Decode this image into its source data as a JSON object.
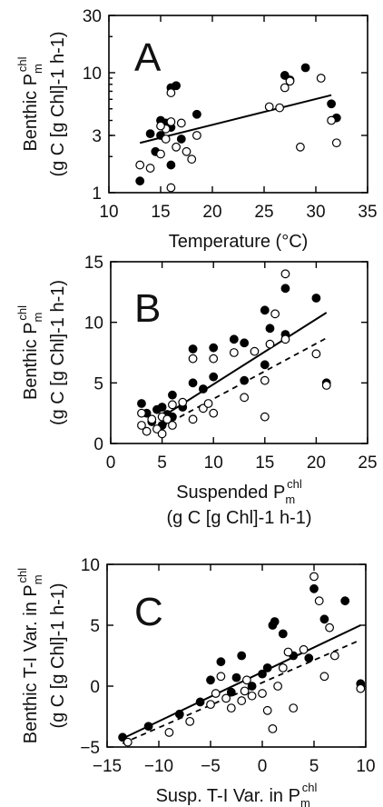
{
  "chart_data": [
    {
      "type": "scatter",
      "panel_letter": "A",
      "ylabel_line1": "Benthic P",
      "ylabel_sub": "m",
      "ylabel_sup": "chl",
      "ylabel_line2": "(g C [g Chl]-1 h-1)",
      "xlabel": "Temperature (°C)",
      "xlim": [
        10,
        35
      ],
      "ylim": [
        1,
        30
      ],
      "yscale": "log",
      "xticks": [
        10,
        15,
        20,
        25,
        30,
        35
      ],
      "yticks": [
        1,
        3,
        10,
        30
      ],
      "series": [
        {
          "marker": "filled",
          "points": [
            [
              13,
              1.25
            ],
            [
              14,
              3.1
            ],
            [
              14.5,
              2.2
            ],
            [
              15,
              4
            ],
            [
              15.5,
              3.8
            ],
            [
              16,
              7.5
            ],
            [
              16,
              1.7
            ],
            [
              16.5,
              7.8
            ],
            [
              17,
              2.8
            ],
            [
              18.5,
              4.5
            ],
            [
              27,
              9.5
            ],
            [
              27.5,
              8.7
            ],
            [
              29,
              11
            ],
            [
              31.5,
              5.5
            ],
            [
              32,
              4.2
            ],
            [
              15,
              3.0
            ],
            [
              16,
              3.5
            ]
          ]
        },
        {
          "marker": "open",
          "points": [
            [
              13,
              1.7
            ],
            [
              14,
              1.6
            ],
            [
              15,
              2.1
            ],
            [
              15.5,
              2.8
            ],
            [
              15.5,
              3.4
            ],
            [
              16,
              1.1
            ],
            [
              16,
              6.8
            ],
            [
              16.5,
              2.4
            ],
            [
              17,
              3.8
            ],
            [
              17.5,
              2.2
            ],
            [
              18,
              1.9
            ],
            [
              18.5,
              3.0
            ],
            [
              25.5,
              5.2
            ],
            [
              26.5,
              5.1
            ],
            [
              27,
              7.5
            ],
            [
              27.5,
              8.5
            ],
            [
              28.5,
              2.4
            ],
            [
              30.5,
              9.0
            ],
            [
              31.5,
              4.0
            ],
            [
              32,
              2.6
            ],
            [
              15,
              3.6
            ],
            [
              16,
              3.9
            ]
          ]
        }
      ],
      "fits": [
        {
          "style": "solid",
          "from": [
            13,
            2.6
          ],
          "to": [
            31.5,
            6.5
          ]
        }
      ]
    },
    {
      "type": "scatter",
      "panel_letter": "B",
      "ylabel_line1": "Benthic P",
      "ylabel_sub": "m",
      "ylabel_sup": "chl",
      "ylabel_line2": "(g C [g Chl]-1 h-1)",
      "xlabel_line1": "Suspended P",
      "xlabel_sub": "m",
      "xlabel_sup": "chl",
      "xlabel_line2": "(g C [g Chl]-1 h-1)",
      "xlim": [
        0,
        25
      ],
      "ylim": [
        0,
        15
      ],
      "xticks": [
        0,
        5,
        10,
        15,
        20,
        25
      ],
      "yticks": [
        0,
        5,
        10,
        15
      ],
      "series": [
        {
          "marker": "filled",
          "points": [
            [
              3,
              3.3
            ],
            [
              3.5,
              2.5
            ],
            [
              4,
              1.8
            ],
            [
              4.5,
              2.8
            ],
            [
              5,
              1.5
            ],
            [
              5,
              3
            ],
            [
              5.5,
              2.4
            ],
            [
              6,
              4
            ],
            [
              6,
              2.2
            ],
            [
              7,
              3
            ],
            [
              8,
              7.8
            ],
            [
              8,
              5
            ],
            [
              9,
              4.5
            ],
            [
              10,
              5.5
            ],
            [
              10,
              7.9
            ],
            [
              12,
              8.6
            ],
            [
              13,
              5.2
            ],
            [
              13,
              8.3
            ],
            [
              15,
              6.5
            ],
            [
              15,
              11
            ],
            [
              15.5,
              9.5
            ],
            [
              17,
              12.8
            ],
            [
              17,
              9
            ],
            [
              20,
              12
            ],
            [
              21,
              5
            ]
          ]
        },
        {
          "marker": "open",
          "points": [
            [
              3,
              1.5
            ],
            [
              3,
              2.5
            ],
            [
              3.5,
              1
            ],
            [
              4,
              2
            ],
            [
              4.5,
              1.2
            ],
            [
              5,
              0.8
            ],
            [
              5,
              2.2
            ],
            [
              5.5,
              2
            ],
            [
              6,
              1.5
            ],
            [
              6,
              3.2
            ],
            [
              7,
              3.4
            ],
            [
              8,
              2
            ],
            [
              8,
              7
            ],
            [
              9,
              2.9
            ],
            [
              9.5,
              3.3
            ],
            [
              10,
              2.5
            ],
            [
              10,
              7
            ],
            [
              12,
              7.5
            ],
            [
              13,
              3.8
            ],
            [
              14,
              7.6
            ],
            [
              15,
              2.2
            ],
            [
              15,
              5.2
            ],
            [
              15.5,
              8.2
            ],
            [
              16,
              10.7
            ],
            [
              17,
              14
            ],
            [
              17,
              8.6
            ],
            [
              20,
              7.4
            ],
            [
              21,
              4.8
            ]
          ]
        }
      ],
      "fits": [
        {
          "style": "solid",
          "from": [
            5,
            2.2
          ],
          "to": [
            21,
            10.8
          ]
        },
        {
          "style": "dashed",
          "from": [
            5,
            1.4
          ],
          "to": [
            21,
            8.7
          ]
        }
      ]
    },
    {
      "type": "scatter",
      "panel_letter": "C",
      "ylabel_line1": "Benthic T-I Var. in P",
      "ylabel_sub": "m",
      "ylabel_sup": "chl",
      "ylabel_line2": "(g C [g Chl]-1 h-1)",
      "xlabel_line1": "Susp. T-I Var. in P",
      "xlabel_sub": "m",
      "xlabel_sup": "chl",
      "xlabel_line2": "(g C [g Chl]-1 h-1)",
      "xlim": [
        -15,
        10
      ],
      "ylim": [
        -5,
        10
      ],
      "xticks": [
        -15,
        -10,
        -5,
        0,
        5,
        10
      ],
      "yticks": [
        -5,
        0,
        5,
        10
      ],
      "series": [
        {
          "marker": "filled",
          "points": [
            [
              -13.5,
              -4.2
            ],
            [
              -11,
              -3.3
            ],
            [
              -8,
              -2.3
            ],
            [
              -5,
              0.5
            ],
            [
              -4,
              2
            ],
            [
              -3,
              -0.5
            ],
            [
              -2,
              2.5
            ],
            [
              -1,
              0
            ],
            [
              0,
              1
            ],
            [
              0.5,
              1.5
            ],
            [
              1,
              5
            ],
            [
              1.2,
              5.3
            ],
            [
              2,
              4.3
            ],
            [
              3,
              2.5
            ],
            [
              4.5,
              2.3
            ],
            [
              5,
              8
            ],
            [
              6,
              5.5
            ],
            [
              8,
              7
            ],
            [
              9.5,
              0.2
            ],
            [
              -6,
              -1.3
            ],
            [
              -2.5,
              0.7
            ]
          ]
        },
        {
          "marker": "open",
          "points": [
            [
              -13,
              -4.6
            ],
            [
              -9,
              -3.8
            ],
            [
              -7,
              -2.9
            ],
            [
              -5,
              -1.5
            ],
            [
              -4.5,
              -0.6
            ],
            [
              -4,
              0.8
            ],
            [
              -3,
              -1.8
            ],
            [
              -2,
              -1.2
            ],
            [
              -1.5,
              0.5
            ],
            [
              -1,
              -0.8
            ],
            [
              0,
              -0.6
            ],
            [
              0.5,
              -2
            ],
            [
              1,
              -3.5
            ],
            [
              1.5,
              0
            ],
            [
              2,
              1.5
            ],
            [
              2.5,
              2.8
            ],
            [
              3,
              -1.8
            ],
            [
              4,
              3
            ],
            [
              5,
              9
            ],
            [
              5.5,
              7
            ],
            [
              6,
              0.8
            ],
            [
              6.5,
              4.8
            ],
            [
              7,
              2.5
            ],
            [
              9.5,
              -0.2
            ],
            [
              -3.5,
              -1
            ],
            [
              -1.7,
              -0.4
            ]
          ]
        }
      ],
      "fits": [
        {
          "style": "solid",
          "from": [
            -13.5,
            -4.3
          ],
          "to": [
            9.5,
            5.0
          ]
        },
        {
          "style": "dashed",
          "from": [
            -13.5,
            -4.7
          ],
          "to": [
            9.5,
            3.8
          ]
        }
      ]
    }
  ]
}
